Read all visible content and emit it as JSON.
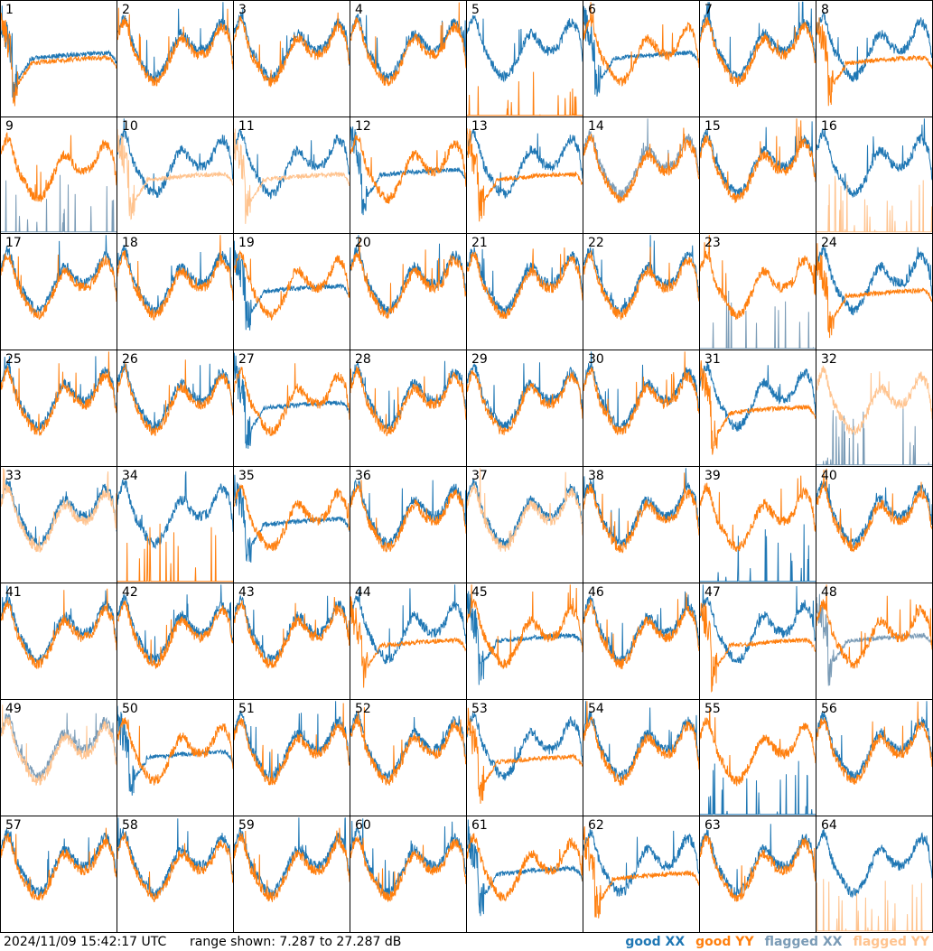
{
  "footer": {
    "timestamp": "2024/11/09 15:42:17 UTC",
    "range": "range shown: 7.287 to 27.287 dB"
  },
  "legend": [
    {
      "label": "good XX",
      "color": "#1f77b4"
    },
    {
      "label": "good YY",
      "color": "#ff7f0e"
    },
    {
      "label": "flagged XX",
      "color": "#7a9bb6"
    },
    {
      "label": "flagged YY",
      "color": "#ffc38e"
    }
  ],
  "chart_data": {
    "type": "line",
    "ylim": [
      7.287,
      27.287
    ],
    "panels": [
      {
        "id": "1",
        "xx": "dip",
        "yy": "dip",
        "fx": false,
        "fy": false
      },
      {
        "id": "2",
        "xx": "normal",
        "yy": "normal",
        "fx": false,
        "fy": false
      },
      {
        "id": "3",
        "xx": "normal",
        "yy": "normal",
        "fx": false,
        "fy": false
      },
      {
        "id": "4",
        "xx": "normal",
        "yy": "normal",
        "fx": false,
        "fy": false
      },
      {
        "id": "5",
        "xx": "normal",
        "yy": "flat",
        "fx": false,
        "fy": false
      },
      {
        "id": "6",
        "xx": "dip",
        "yy": "normal",
        "fx": false,
        "fy": false
      },
      {
        "id": "7",
        "xx": "normal",
        "yy": "normal",
        "fx": false,
        "fy": false
      },
      {
        "id": "8",
        "xx": "normal",
        "yy": "dip",
        "fx": false,
        "fy": false
      },
      {
        "id": "9",
        "xx": "flat",
        "yy": "normal",
        "fx": true,
        "fy": false
      },
      {
        "id": "10",
        "xx": "normal",
        "yy": "dip",
        "fx": false,
        "fy": true
      },
      {
        "id": "11",
        "xx": "normal",
        "yy": "dip",
        "fx": false,
        "fy": true
      },
      {
        "id": "12",
        "xx": "dip",
        "yy": "normal",
        "fx": false,
        "fy": false
      },
      {
        "id": "13",
        "xx": "normal",
        "yy": "dip",
        "fx": false,
        "fy": false
      },
      {
        "id": "14",
        "xx": "normal",
        "yy": "normal",
        "fx": true,
        "fy": false
      },
      {
        "id": "15",
        "xx": "normal",
        "yy": "normal",
        "fx": false,
        "fy": false
      },
      {
        "id": "16",
        "xx": "normal",
        "yy": "flat",
        "fx": false,
        "fy": true
      },
      {
        "id": "17",
        "xx": "normal",
        "yy": "normal",
        "fx": false,
        "fy": false
      },
      {
        "id": "18",
        "xx": "normal",
        "yy": "normal",
        "fx": false,
        "fy": false
      },
      {
        "id": "19",
        "xx": "dip",
        "yy": "normal",
        "fx": false,
        "fy": false
      },
      {
        "id": "20",
        "xx": "normal",
        "yy": "normal",
        "fx": false,
        "fy": false
      },
      {
        "id": "21",
        "xx": "normal",
        "yy": "normal",
        "fx": false,
        "fy": false
      },
      {
        "id": "22",
        "xx": "normal",
        "yy": "normal",
        "fx": false,
        "fy": false
      },
      {
        "id": "23",
        "xx": "flat",
        "yy": "normal",
        "fx": true,
        "fy": false
      },
      {
        "id": "24",
        "xx": "normal",
        "yy": "dip",
        "fx": false,
        "fy": false
      },
      {
        "id": "25",
        "xx": "normal",
        "yy": "normal",
        "fx": false,
        "fy": false
      },
      {
        "id": "26",
        "xx": "normal",
        "yy": "normal",
        "fx": false,
        "fy": false
      },
      {
        "id": "27",
        "xx": "dip",
        "yy": "normal",
        "fx": false,
        "fy": false
      },
      {
        "id": "28",
        "xx": "normal",
        "yy": "normal",
        "fx": false,
        "fy": false
      },
      {
        "id": "29",
        "xx": "normal",
        "yy": "normal",
        "fx": false,
        "fy": false
      },
      {
        "id": "30",
        "xx": "normal",
        "yy": "normal",
        "fx": false,
        "fy": false
      },
      {
        "id": "31",
        "xx": "normal",
        "yy": "dip",
        "fx": false,
        "fy": false
      },
      {
        "id": "32",
        "xx": "flat",
        "yy": "normal",
        "fx": true,
        "fy": true
      },
      {
        "id": "33",
        "xx": "normal",
        "yy": "normal",
        "fx": false,
        "fy": true
      },
      {
        "id": "34",
        "xx": "normal",
        "yy": "flat",
        "fx": false,
        "fy": false
      },
      {
        "id": "35",
        "xx": "dip",
        "yy": "normal",
        "fx": false,
        "fy": false
      },
      {
        "id": "36",
        "xx": "normal",
        "yy": "normal",
        "fx": false,
        "fy": false
      },
      {
        "id": "37",
        "xx": "normal",
        "yy": "normal",
        "fx": false,
        "fy": true
      },
      {
        "id": "38",
        "xx": "normal",
        "yy": "normal",
        "fx": false,
        "fy": false
      },
      {
        "id": "39",
        "xx": "flat",
        "yy": "normal",
        "fx": false,
        "fy": false
      },
      {
        "id": "40",
        "xx": "normal",
        "yy": "normal",
        "fx": false,
        "fy": false
      },
      {
        "id": "41",
        "xx": "normal",
        "yy": "normal",
        "fx": false,
        "fy": false
      },
      {
        "id": "42",
        "xx": "normal",
        "yy": "normal",
        "fx": false,
        "fy": false
      },
      {
        "id": "43",
        "xx": "normal",
        "yy": "normal",
        "fx": false,
        "fy": false
      },
      {
        "id": "44",
        "xx": "normal",
        "yy": "dip",
        "fx": false,
        "fy": false
      },
      {
        "id": "45",
        "xx": "dip",
        "yy": "normal",
        "fx": false,
        "fy": false
      },
      {
        "id": "46",
        "xx": "normal",
        "yy": "normal",
        "fx": false,
        "fy": false
      },
      {
        "id": "47",
        "xx": "normal",
        "yy": "dip",
        "fx": false,
        "fy": false
      },
      {
        "id": "48",
        "xx": "dip",
        "yy": "normal",
        "fx": true,
        "fy": false
      },
      {
        "id": "49",
        "xx": "normal",
        "yy": "normal",
        "fx": true,
        "fy": true
      },
      {
        "id": "50",
        "xx": "dip",
        "yy": "normal",
        "fx": false,
        "fy": false
      },
      {
        "id": "51",
        "xx": "normal",
        "yy": "normal",
        "fx": false,
        "fy": false
      },
      {
        "id": "52",
        "xx": "normal",
        "yy": "normal",
        "fx": false,
        "fy": false
      },
      {
        "id": "53",
        "xx": "normal",
        "yy": "dip",
        "fx": false,
        "fy": false
      },
      {
        "id": "54",
        "xx": "normal",
        "yy": "normal",
        "fx": false,
        "fy": false
      },
      {
        "id": "55",
        "xx": "flat",
        "yy": "normal",
        "fx": false,
        "fy": false
      },
      {
        "id": "56",
        "xx": "normal",
        "yy": "normal",
        "fx": false,
        "fy": false
      },
      {
        "id": "57",
        "xx": "normal",
        "yy": "normal",
        "fx": false,
        "fy": false
      },
      {
        "id": "58",
        "xx": "normal",
        "yy": "normal",
        "fx": false,
        "fy": false
      },
      {
        "id": "59",
        "xx": "normal",
        "yy": "normal",
        "fx": false,
        "fy": false
      },
      {
        "id": "60",
        "xx": "normal",
        "yy": "normal",
        "fx": false,
        "fy": false
      },
      {
        "id": "61",
        "xx": "dip",
        "yy": "normal",
        "fx": false,
        "fy": false
      },
      {
        "id": "62",
        "xx": "normal",
        "yy": "dip",
        "fx": false,
        "fy": false
      },
      {
        "id": "63",
        "xx": "normal",
        "yy": "normal",
        "fx": false,
        "fy": false
      },
      {
        "id": "64",
        "xx": "normal",
        "yy": "flat",
        "fx": false,
        "fy": true
      }
    ]
  }
}
